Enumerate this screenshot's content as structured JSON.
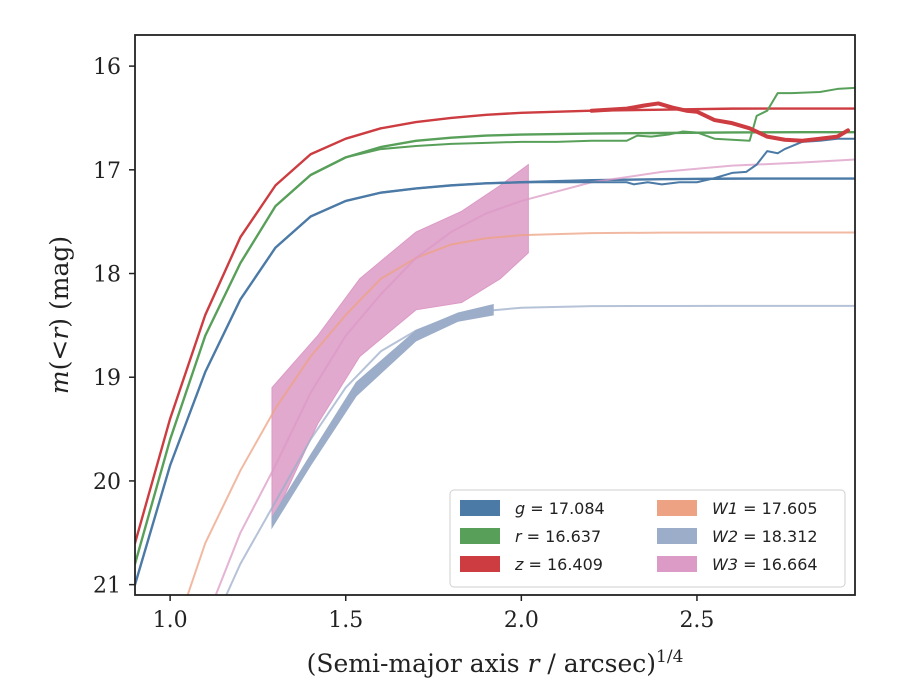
{
  "chart_data": {
    "type": "line",
    "xlabel": "(Semi-major axis r / arcsec)^{1/4}",
    "ylabel": "m(<r) (mag)",
    "xlim": [
      0.9,
      2.95
    ],
    "ylim": [
      21.1,
      15.7
    ],
    "y_inverted": true,
    "grid": false,
    "legend_position": "lower-right",
    "legend_columns": 2,
    "x_ticks": [
      "1.0",
      "1.5",
      "2.0",
      "2.5"
    ],
    "x_tick_values": [
      1.0,
      1.5,
      2.0,
      2.5
    ],
    "y_ticks": [
      "16",
      "17",
      "18",
      "19",
      "20",
      "21"
    ],
    "y_tick_values": [
      16,
      17,
      18,
      19,
      20,
      21
    ],
    "legend": [
      {
        "var": "g",
        "text": "17.084",
        "color": "#4c7aa6"
      },
      {
        "var": "r",
        "text": "16.637",
        "color": "#58a05a"
      },
      {
        "var": "z",
        "text": "16.409",
        "color": "#cc3c40"
      },
      {
        "var": "W1",
        "text": "17.605",
        "color": "#eda283"
      },
      {
        "var": "W2",
        "text": "18.312",
        "color": "#9cadc9"
      },
      {
        "var": "W3",
        "text": "16.664",
        "color": "#dc9ac6"
      }
    ],
    "series": [
      {
        "name": "g = 17.084",
        "band": "g",
        "color": "#4c7aa6",
        "model": {
          "x": [
            0.9,
            1.0,
            1.1,
            1.2,
            1.3,
            1.4,
            1.5,
            1.6,
            1.7,
            1.8,
            1.9,
            2.0,
            2.2,
            2.4,
            2.6,
            2.8,
            2.95
          ],
          "y": [
            21.0,
            19.85,
            18.95,
            18.25,
            17.75,
            17.45,
            17.3,
            17.22,
            17.18,
            17.15,
            17.13,
            17.12,
            17.1,
            17.09,
            17.085,
            17.084,
            17.084
          ]
        },
        "data": {
          "x": [
            1.3,
            1.4,
            1.5,
            1.6,
            1.7,
            1.8,
            1.9,
            2.0,
            2.1,
            2.2,
            2.3,
            2.32,
            2.36,
            2.4,
            2.45,
            2.5,
            2.55,
            2.6,
            2.64,
            2.67,
            2.7,
            2.73,
            2.75,
            2.8,
            2.85,
            2.9,
            2.95
          ],
          "y": [
            17.75,
            17.45,
            17.3,
            17.22,
            17.18,
            17.15,
            17.13,
            17.12,
            17.12,
            17.12,
            17.12,
            17.14,
            17.12,
            17.14,
            17.12,
            17.12,
            17.08,
            17.03,
            17.02,
            16.95,
            16.82,
            16.84,
            16.8,
            16.73,
            16.72,
            16.7,
            16.7
          ]
        }
      },
      {
        "name": "r = 16.637",
        "band": "r",
        "color": "#58a05a",
        "model": {
          "x": [
            0.9,
            1.0,
            1.1,
            1.2,
            1.3,
            1.4,
            1.5,
            1.6,
            1.7,
            1.8,
            1.9,
            2.0,
            2.2,
            2.4,
            2.6,
            2.8,
            2.95
          ],
          "y": [
            20.8,
            19.6,
            18.6,
            17.9,
            17.35,
            17.05,
            16.88,
            16.78,
            16.72,
            16.69,
            16.67,
            16.66,
            16.65,
            16.645,
            16.64,
            16.637,
            16.637
          ]
        },
        "data": {
          "x": [
            1.3,
            1.4,
            1.5,
            1.6,
            1.7,
            1.8,
            1.9,
            2.0,
            2.1,
            2.2,
            2.3,
            2.33,
            2.37,
            2.42,
            2.46,
            2.5,
            2.55,
            2.6,
            2.65,
            2.67,
            2.7,
            2.73,
            2.77,
            2.85,
            2.9,
            2.95
          ],
          "y": [
            17.35,
            17.05,
            16.88,
            16.8,
            16.77,
            16.75,
            16.74,
            16.73,
            16.73,
            16.72,
            16.72,
            16.67,
            16.68,
            16.66,
            16.63,
            16.64,
            16.7,
            16.71,
            16.72,
            16.48,
            16.43,
            16.26,
            16.26,
            16.25,
            16.22,
            16.21
          ]
        }
      },
      {
        "name": "z = 16.409",
        "band": "z",
        "color": "#cc3c40",
        "model": {
          "x": [
            0.9,
            1.0,
            1.1,
            1.2,
            1.3,
            1.4,
            1.5,
            1.6,
            1.7,
            1.8,
            1.9,
            2.0,
            2.2,
            2.4,
            2.6,
            2.8,
            2.95
          ],
          "y": [
            20.6,
            19.4,
            18.4,
            17.65,
            17.15,
            16.85,
            16.7,
            16.6,
            16.54,
            16.5,
            16.47,
            16.45,
            16.43,
            16.42,
            16.41,
            16.409,
            16.409
          ]
        },
        "data": {
          "x": [
            2.2,
            2.3,
            2.35,
            2.39,
            2.43,
            2.47,
            2.5,
            2.55,
            2.6,
            2.65,
            2.7,
            2.75,
            2.8,
            2.85,
            2.9,
            2.93
          ],
          "y": [
            16.43,
            16.41,
            16.38,
            16.36,
            16.4,
            16.43,
            16.44,
            16.52,
            16.55,
            16.6,
            16.68,
            16.71,
            16.72,
            16.7,
            16.68,
            16.62
          ],
          "linewidth": 4
        }
      },
      {
        "name": "W1 = 17.605",
        "band": "W1",
        "color": "#eda283",
        "model": {
          "x": [
            1.05,
            1.1,
            1.2,
            1.3,
            1.4,
            1.5,
            1.6,
            1.7,
            1.8,
            1.9,
            2.0,
            2.2,
            2.4,
            2.6,
            2.8,
            2.95
          ],
          "y": [
            21.1,
            20.6,
            19.9,
            19.3,
            18.8,
            18.4,
            18.05,
            17.85,
            17.72,
            17.66,
            17.63,
            17.61,
            17.606,
            17.605,
            17.605,
            17.605
          ]
        }
      },
      {
        "name": "W2 = 18.312",
        "band": "W2",
        "color": "#9cadc9",
        "model": {
          "x": [
            1.16,
            1.2,
            1.3,
            1.4,
            1.5,
            1.6,
            1.7,
            1.8,
            1.9,
            2.0,
            2.2,
            2.4,
            2.6,
            2.8,
            2.95
          ],
          "y": [
            21.1,
            20.8,
            20.2,
            19.6,
            19.1,
            18.75,
            18.55,
            18.42,
            18.36,
            18.33,
            18.315,
            18.313,
            18.312,
            18.312,
            18.312
          ]
        },
        "band_upper": {
          "x": [
            1.29,
            1.4,
            1.53,
            1.7,
            1.82,
            1.92
          ],
          "y": [
            20.35,
            19.75,
            19.05,
            18.55,
            18.38,
            18.3
          ]
        },
        "band_lower": {
          "x": [
            1.29,
            1.4,
            1.53,
            1.7,
            1.82,
            1.92
          ],
          "y": [
            20.45,
            19.85,
            19.18,
            18.65,
            18.46,
            18.4
          ]
        }
      },
      {
        "name": "W3 = 16.664",
        "band": "W3",
        "color": "#dc9ac6",
        "model": {
          "x": [
            1.13,
            1.2,
            1.3,
            1.4,
            1.5,
            1.6,
            1.7,
            1.8,
            1.9,
            2.0,
            2.2,
            2.4,
            2.6,
            2.8,
            2.95
          ],
          "y": [
            21.1,
            20.5,
            19.85,
            19.15,
            18.6,
            18.2,
            17.85,
            17.6,
            17.42,
            17.3,
            17.12,
            17.02,
            16.96,
            16.93,
            16.9
          ]
        },
        "band_upper": {
          "x": [
            1.29,
            1.42,
            1.54,
            1.7,
            1.83,
            1.94,
            2.02
          ],
          "y": [
            19.1,
            18.6,
            18.05,
            17.6,
            17.4,
            17.15,
            16.95
          ]
        },
        "band_lower": {
          "x": [
            1.29,
            1.42,
            1.54,
            1.7,
            1.83,
            1.94,
            2.02
          ],
          "y": [
            20.4,
            19.45,
            18.8,
            18.35,
            18.28,
            18.05,
            17.8
          ]
        }
      }
    ]
  }
}
